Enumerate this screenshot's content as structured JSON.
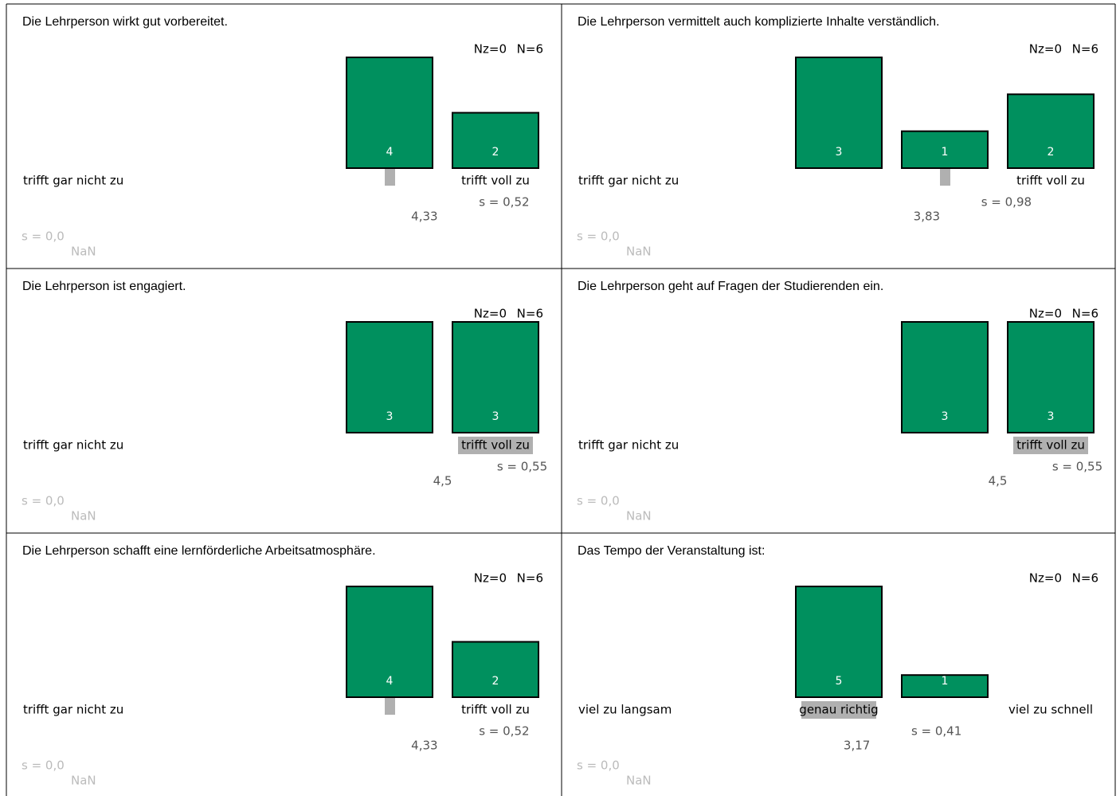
{
  "chart_data": [
    {
      "type": "bar",
      "title": "Die Lehrperson wirkt gut vorbereitet.",
      "categories": [
        "trifft gar nicht zu",
        null,
        null,
        null,
        "trifft voll zu"
      ],
      "values": [
        null,
        null,
        null,
        4,
        2
      ],
      "color": "#00905e",
      "median": 3,
      "nz": {
        "value": 0,
        "label": "Nz=0"
      },
      "n": {
        "value": 6,
        "label": "N=6"
      },
      "mean": {
        "value": 4.33,
        "label": "4,33"
      },
      "sd": {
        "value": 0.52,
        "label": "s = 0,52"
      },
      "empty_sd": {
        "value": 0,
        "label": "s = 0,0"
      },
      "empty_mean": "NaN"
    },
    {
      "type": "bar",
      "title": "Die Lehrperson vermittelt auch komplizierte Inhalte verständlich.",
      "categories": [
        "trifft gar nicht zu",
        null,
        null,
        null,
        "trifft voll zu"
      ],
      "values": [
        null,
        null,
        3,
        1,
        2
      ],
      "color": "#00905e",
      "median": 3,
      "nz": {
        "value": 0,
        "label": "Nz=0"
      },
      "n": {
        "value": 6,
        "label": "N=6"
      },
      "mean": {
        "value": 3.83,
        "label": "3,83"
      },
      "sd": {
        "value": 0.98,
        "label": "s = 0,98"
      },
      "empty_sd": {
        "value": 0,
        "label": "s = 0,0"
      },
      "empty_mean": "NaN"
    },
    {
      "type": "bar",
      "title": "Die Lehrperson ist engagiert.",
      "categories": [
        "trifft gar nicht zu",
        null,
        null,
        null,
        "trifft voll zu"
      ],
      "values": [
        null,
        null,
        null,
        3,
        3
      ],
      "color": "#00905e",
      "median": 4,
      "nz": {
        "value": 0,
        "label": "Nz=0"
      },
      "n": {
        "value": 6,
        "label": "N=6"
      },
      "mean": {
        "value": 4.5,
        "label": "4,5"
      },
      "sd": {
        "value": 0.55,
        "label": "s = 0,55"
      },
      "empty_sd": {
        "value": 0,
        "label": "s = 0,0"
      },
      "empty_mean": "NaN"
    },
    {
      "type": "bar",
      "title": "Die Lehrperson geht auf Fragen der Studierenden ein.",
      "categories": [
        "trifft gar nicht zu",
        null,
        null,
        null,
        "trifft voll zu"
      ],
      "values": [
        null,
        null,
        null,
        3,
        3
      ],
      "color": "#00905e",
      "median": 4,
      "nz": {
        "value": 0,
        "label": "Nz=0"
      },
      "n": {
        "value": 6,
        "label": "N=6"
      },
      "mean": {
        "value": 4.5,
        "label": "4,5"
      },
      "sd": {
        "value": 0.55,
        "label": "s = 0,55"
      },
      "empty_sd": {
        "value": 0,
        "label": "s = 0,0"
      },
      "empty_mean": "NaN"
    },
    {
      "type": "bar",
      "title": "Die Lehrperson schafft eine lernförderliche Arbeitsatmosphäre.",
      "categories": [
        "trifft gar nicht zu",
        null,
        null,
        null,
        "trifft voll zu"
      ],
      "values": [
        null,
        null,
        null,
        4,
        2
      ],
      "color": "#00905e",
      "median": 3,
      "nz": {
        "value": 0,
        "label": "Nz=0"
      },
      "n": {
        "value": 6,
        "label": "N=6"
      },
      "mean": {
        "value": 4.33,
        "label": "4,33"
      },
      "sd": {
        "value": 0.52,
        "label": "s = 0,52"
      },
      "empty_sd": {
        "value": 0,
        "label": "s = 0,0"
      },
      "empty_mean": "NaN"
    },
    {
      "type": "bar",
      "title": "Das Tempo der Veranstaltung ist:",
      "categories": [
        "viel zu langsam",
        null,
        "genau richtig",
        null,
        "viel zu schnell"
      ],
      "values": [
        null,
        null,
        5,
        1,
        null
      ],
      "color": "#00905e",
      "median": 2,
      "nz": {
        "value": 0,
        "label": "Nz=0"
      },
      "n": {
        "value": 6,
        "label": "N=6"
      },
      "mean": {
        "value": 3.17,
        "label": "3,17"
      },
      "sd": {
        "value": 0.41,
        "label": "s = 0,41"
      },
      "empty_sd": {
        "value": 0,
        "label": "s = 0,0"
      },
      "empty_mean": "NaN"
    }
  ]
}
